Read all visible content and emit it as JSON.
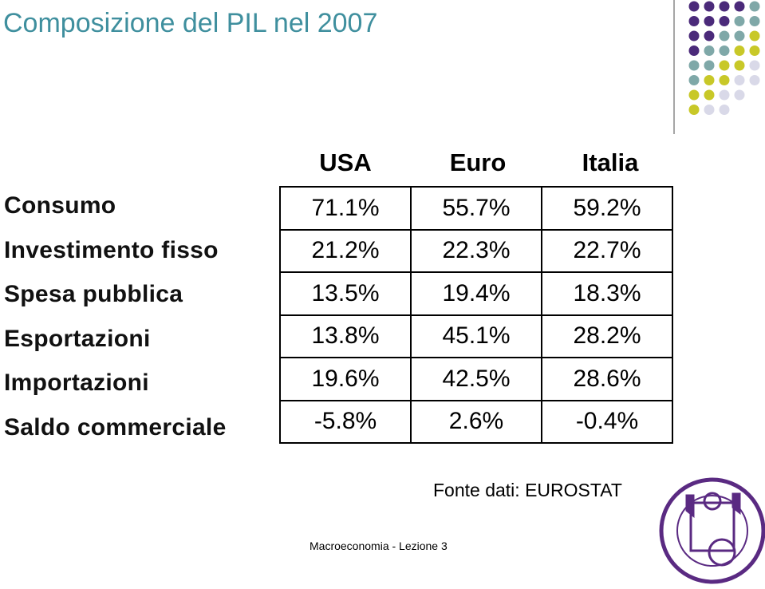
{
  "header": {
    "title": "Composizione del PIL nel 2007"
  },
  "table": {
    "columns": [
      "USA",
      "Euro",
      "Italia"
    ],
    "rows": [
      [
        "Consumo",
        "71.1%",
        "55.7%",
        "59.2%"
      ],
      [
        "Investimento fisso",
        "21.2%",
        "22.3%",
        "22.7%"
      ],
      [
        "Spesa pubblica",
        "13.5%",
        "19.4%",
        "18.3%"
      ],
      [
        "Esportazioni",
        "13.8%",
        "45.1%",
        "28.2%"
      ],
      [
        "Importazioni",
        "19.6%",
        "42.5%",
        "28.6%"
      ],
      [
        "Saldo commerciale",
        "-5.8%",
        "2.6%",
        "-0.4%"
      ]
    ]
  },
  "source": "Fonte dati: EUROSTAT",
  "footer": "Macroeconomia - Lezione 3"
}
